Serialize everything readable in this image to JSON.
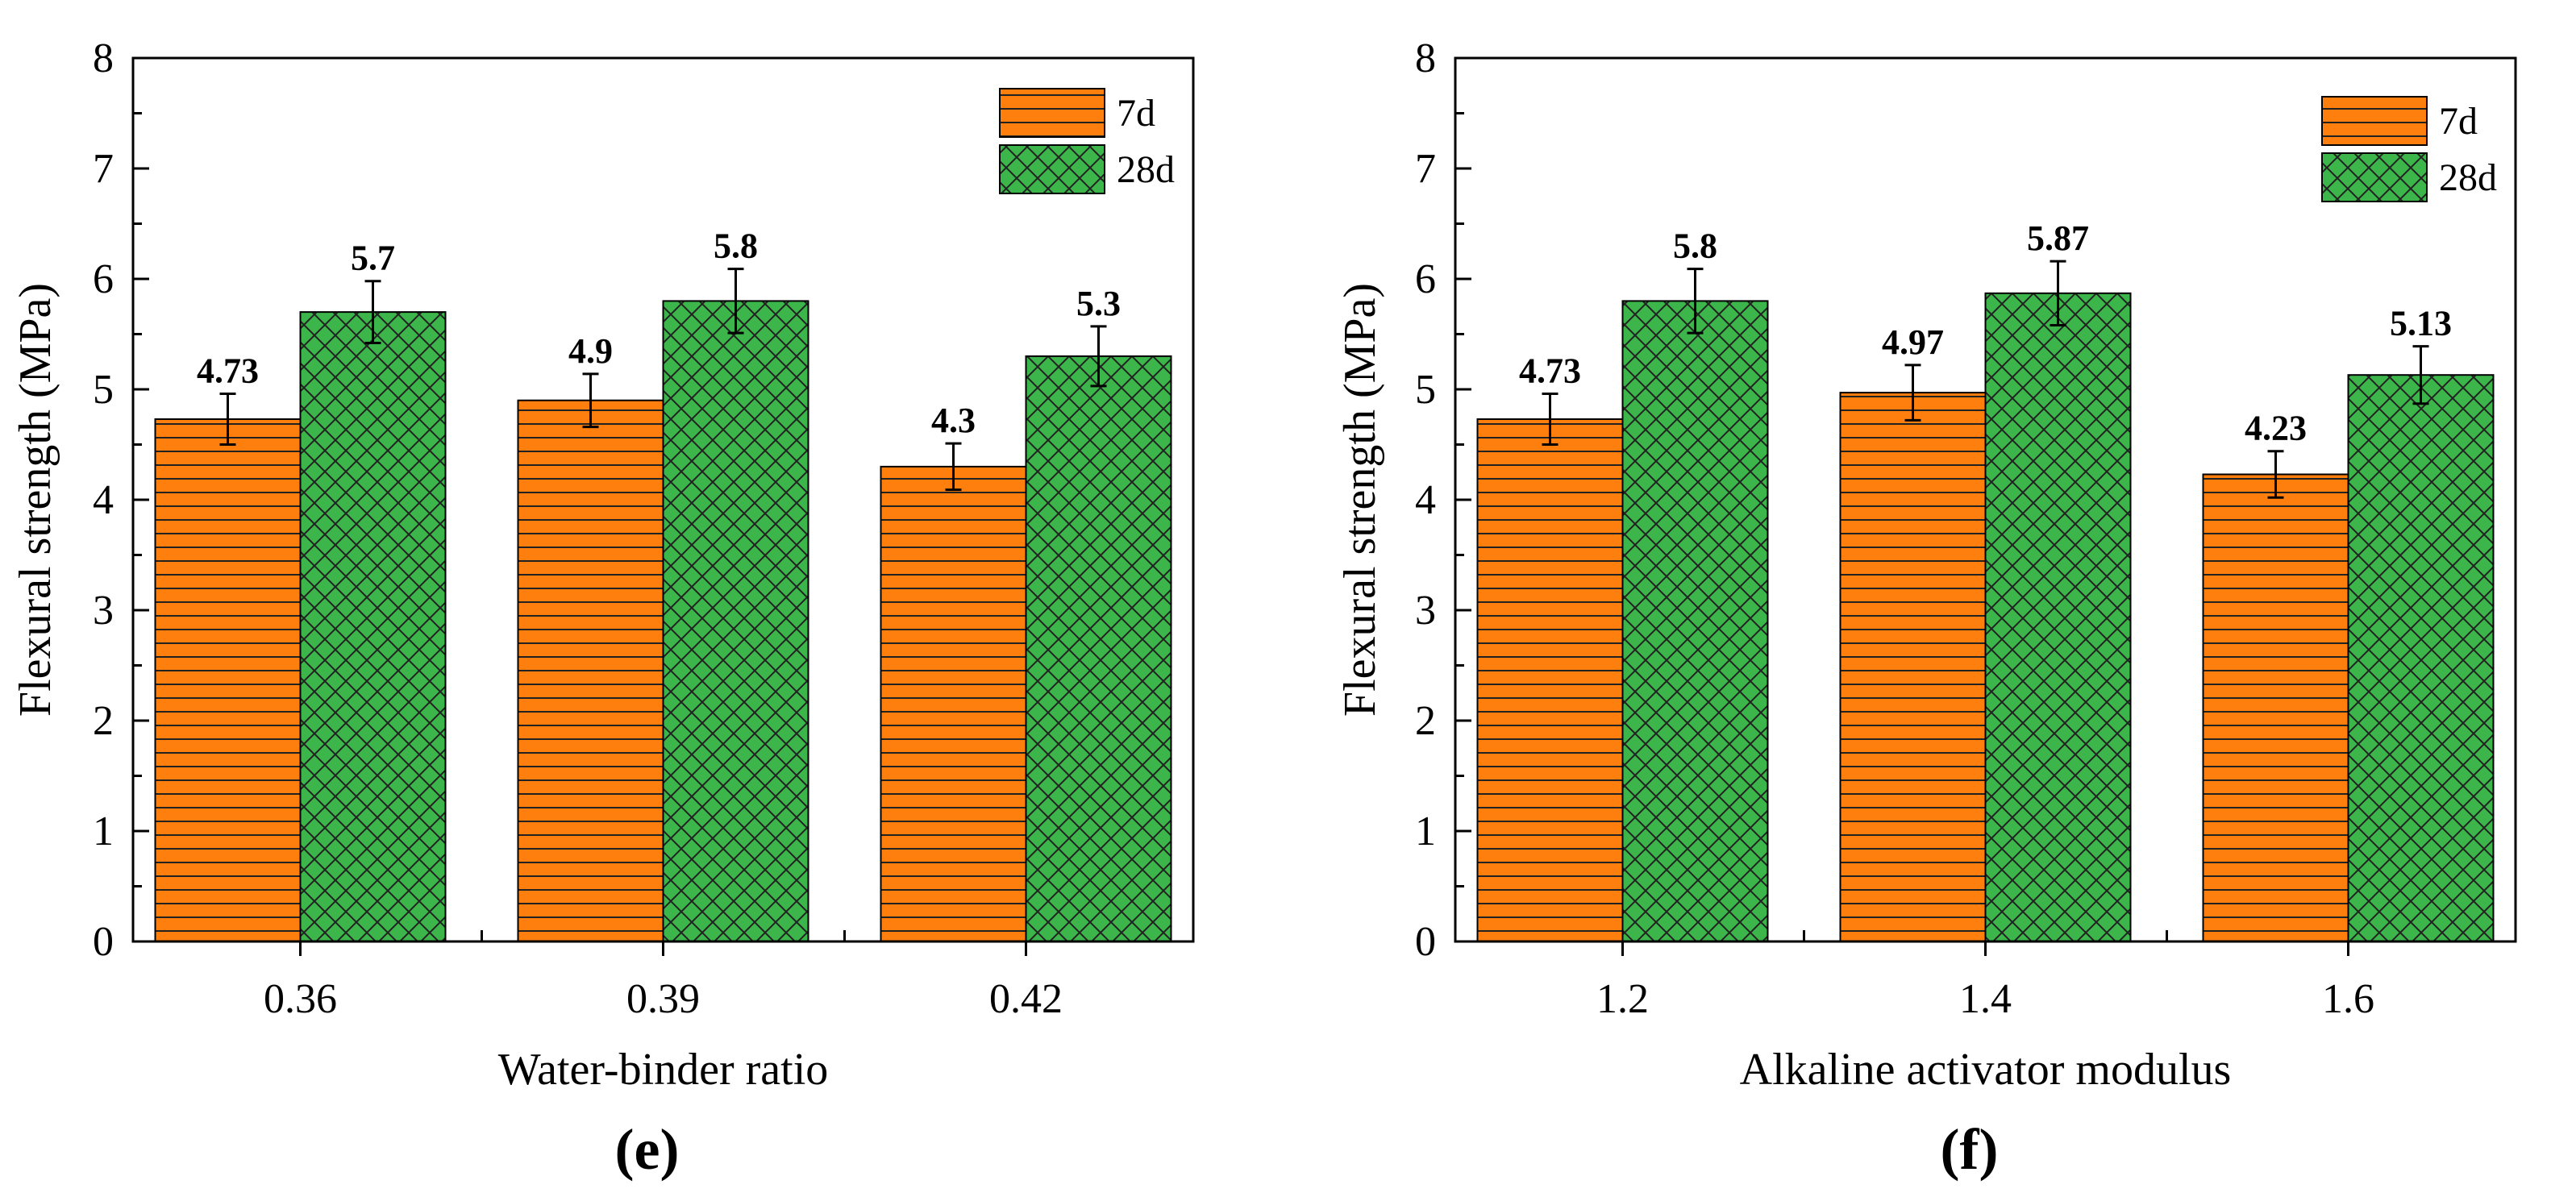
{
  "colors": {
    "series_7d": "#ff7f0e",
    "series_28d": "#3cb54a",
    "pattern_line": "#222222",
    "axis": "#000000"
  },
  "chart_data": [
    {
      "type": "bar",
      "panel_label": "(e)",
      "xlabel": "Water-binder ratio",
      "ylabel": "Flexural strength (MPa)",
      "categories": [
        "0.36",
        "0.39",
        "0.42"
      ],
      "ylim": [
        0,
        8
      ],
      "yticks": [
        "0",
        "1",
        "2",
        "3",
        "4",
        "5",
        "6",
        "7",
        "8"
      ],
      "legend_position": "top-right",
      "series": [
        {
          "name": "7d",
          "pattern": "horizontal-lines",
          "values": [
            4.73,
            4.9,
            4.3
          ],
          "errors": [
            0.23,
            0.24,
            0.21
          ],
          "labels": [
            "4.73",
            "4.9",
            "4.3"
          ]
        },
        {
          "name": "28d",
          "pattern": "crosshatch",
          "values": [
            5.7,
            5.8,
            5.3
          ],
          "errors": [
            0.28,
            0.29,
            0.27
          ],
          "labels": [
            "5.7",
            "5.8",
            "5.3"
          ]
        }
      ]
    },
    {
      "type": "bar",
      "panel_label": "(f)",
      "xlabel": "Alkaline activator modulus",
      "ylabel": "Flexural strength (MPa)",
      "categories": [
        "1.2",
        "1.4",
        "1.6"
      ],
      "ylim": [
        0,
        8
      ],
      "yticks": [
        "0",
        "1",
        "2",
        "3",
        "4",
        "5",
        "6",
        "7",
        "8"
      ],
      "legend_position": "top-right",
      "series": [
        {
          "name": "7d",
          "pattern": "horizontal-lines",
          "values": [
            4.73,
            4.97,
            4.23
          ],
          "errors": [
            0.23,
            0.25,
            0.21
          ],
          "labels": [
            "4.73",
            "4.97",
            "4.23"
          ]
        },
        {
          "name": "28d",
          "pattern": "crosshatch",
          "values": [
            5.8,
            5.87,
            5.13
          ],
          "errors": [
            0.29,
            0.29,
            0.26
          ],
          "labels": [
            "5.8",
            "5.87",
            "5.13"
          ]
        }
      ]
    }
  ]
}
